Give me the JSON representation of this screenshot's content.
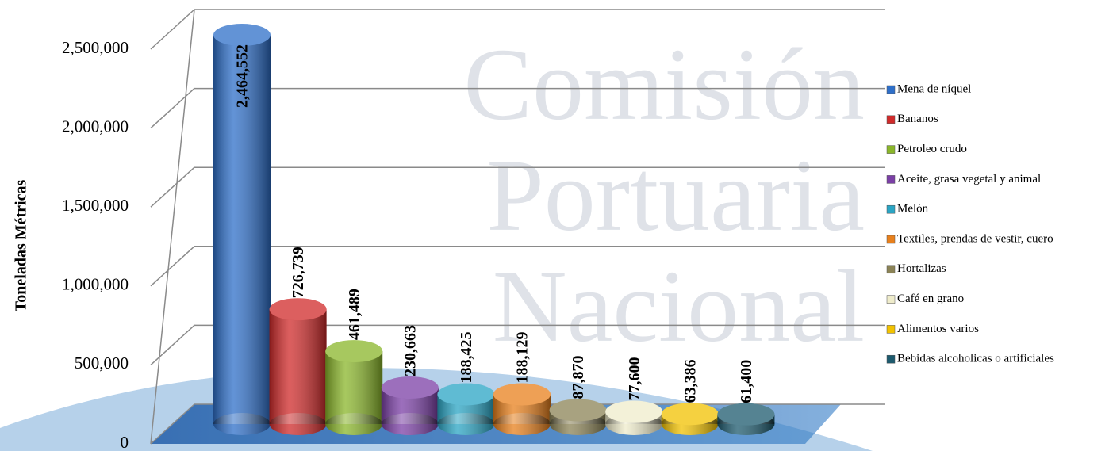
{
  "chart_data": {
    "type": "bar",
    "y_label": "Toneladas Métricas",
    "watermark": [
      "Comisión",
      "Portuaria",
      "Nacional"
    ],
    "categories": [
      "Mena de níquel",
      "Bananos",
      "Petroleo crudo",
      "Aceite, grasa vegetal y animal",
      "Melón",
      "Textiles, prendas de vestir, cuero",
      "Hortalizas",
      "Café en grano",
      "Alimentos varios",
      "Bebidas alcoholicas o artificiales"
    ],
    "values": [
      2464552,
      726739,
      461489,
      230663,
      188425,
      188129,
      87870,
      77600,
      63386,
      61400
    ],
    "value_labels": [
      "2,464,552",
      "726,739",
      "461,489",
      "230,663",
      "188,425",
      "188,129",
      "87,870",
      "77,600",
      "63,386",
      "61,400"
    ],
    "colors": [
      "#2e6fc9",
      "#d02a2a",
      "#8ab62a",
      "#7b3fa6",
      "#2aa5c4",
      "#e8801c",
      "#8b8356",
      "#efeccb",
      "#f2c200",
      "#1d5a6e"
    ],
    "ylim": [
      0,
      2500000
    ],
    "yticks": [
      0,
      {
        "value": 500000,
        "label": "500,000"
      },
      {
        "value": 1000000,
        "label": "1,000,000"
      },
      {
        "value": 1500000,
        "label": "1,500,000"
      },
      {
        "value": 2000000,
        "label": "2,000,000"
      },
      {
        "value": 2500000,
        "label": "2,500,000"
      }
    ],
    "grid": true,
    "legend": "right"
  }
}
